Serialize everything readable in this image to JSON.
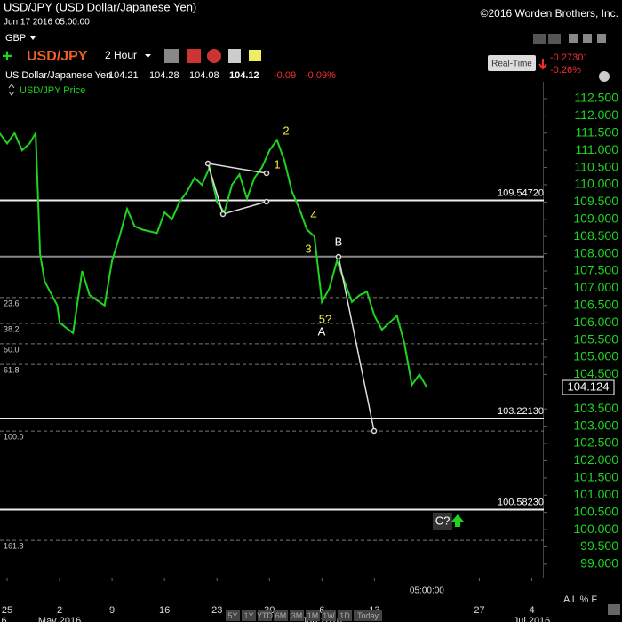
{
  "header": {
    "title": "USD/JPY (USD Dollar/Japanese Yen)",
    "datetime": "Jun 17 2016 05:00:00",
    "copyright": "©2016 Worden Brothers, Inc.",
    "currency": "GBP",
    "symbol": "USD/JPY",
    "interval": "2 Hour",
    "name": "US Dollar/Japanese Yen",
    "ohlc": [
      104.21,
      104.28,
      104.08,
      104.12
    ],
    "change": -0.09,
    "change_pct": "-0.09%",
    "realtime_button": "Real-Time",
    "rt_change": -0.27301,
    "rt_change_pct": "-0.26%"
  },
  "chart_data": {
    "type": "line",
    "series": [
      {
        "name": "USD/JPY Price",
        "color": "#1fd41f",
        "x": [
          -1,
          0,
          1,
          2,
          3,
          3.8,
          4.4,
          5,
          6.7,
          7,
          8.8,
          10,
          11,
          13,
          14,
          15,
          16,
          17,
          18,
          20,
          21,
          22,
          23,
          24,
          25,
          26,
          27,
          28,
          29,
          30,
          31,
          32,
          33,
          34,
          35,
          36,
          37,
          38,
          39,
          40,
          41,
          42,
          43,
          44,
          45,
          46,
          47,
          48,
          49,
          50,
          51,
          52,
          53,
          54,
          55,
          56
        ],
        "values": [
          111.5,
          111.2,
          111.5,
          111.0,
          111.2,
          111.5,
          108.0,
          107.2,
          106.5,
          106.0,
          105.7,
          107.5,
          106.8,
          106.5,
          107.8,
          108.5,
          109.3,
          108.8,
          108.7,
          108.6,
          109.2,
          109.0,
          109.5,
          109.8,
          110.2,
          110.0,
          110.5,
          109.5,
          109.2,
          110.0,
          110.3,
          109.6,
          110.2,
          110.5,
          111.0,
          111.3,
          110.7,
          109.8,
          109.3,
          108.7,
          108.5,
          106.6,
          107.0,
          107.8,
          107.2,
          106.6,
          106.8,
          106.9,
          106.2,
          105.8,
          106.0,
          106.2,
          105.4,
          104.2,
          104.5,
          104.124
        ]
      }
    ],
    "last_price": 104.124,
    "xlim": [
      -0.95,
      71.6
    ],
    "ylim": [
      98.61,
      113.04
    ],
    "xticks": [
      {
        "value": 0,
        "label": "25"
      },
      {
        "value": 7,
        "label": "2"
      },
      {
        "value": 14,
        "label": "9"
      },
      {
        "value": 21,
        "label": "16"
      },
      {
        "value": 28,
        "label": "23"
      },
      {
        "value": 35,
        "label": "30"
      },
      {
        "value": 42,
        "label": "6"
      },
      {
        "value": 49,
        "label": "13"
      },
      {
        "value": 56,
        "label": "05:00:00"
      },
      {
        "value": 63,
        "label": "27"
      },
      {
        "value": 70,
        "label": "4"
      }
    ],
    "month_ticks": [
      {
        "value": -1.5,
        "label": "2016"
      },
      {
        "value": 7,
        "label": "May 2016"
      },
      {
        "value": 42,
        "label": "Jun 2016"
      },
      {
        "value": 70,
        "label": "Jul 2016"
      }
    ],
    "yticks": [
      {
        "value": 99.0,
        "label": "99.000"
      },
      {
        "value": 99.5,
        "label": "99.500"
      },
      {
        "value": 100.0,
        "label": "100.000"
      },
      {
        "value": 100.5,
        "label": "100.500"
      },
      {
        "value": 101.0,
        "label": "101.000"
      },
      {
        "value": 101.5,
        "label": "101.500"
      },
      {
        "value": 102.0,
        "label": "102.000"
      },
      {
        "value": 102.5,
        "label": "102.500"
      },
      {
        "value": 103.0,
        "label": "103.000"
      },
      {
        "value": 103.5,
        "label": "103.500"
      },
      {
        "value": 104.5,
        "label": "104.500"
      },
      {
        "value": 105.0,
        "label": "105.000"
      },
      {
        "value": 105.5,
        "label": "105.500"
      },
      {
        "value": 106.0,
        "label": "106.000"
      },
      {
        "value": 106.5,
        "label": "106.500"
      },
      {
        "value": 107.0,
        "label": "107.000"
      },
      {
        "value": 107.5,
        "label": "107.500"
      },
      {
        "value": 108.0,
        "label": "108.000"
      },
      {
        "value": 108.5,
        "label": "108.500"
      },
      {
        "value": 109.0,
        "label": "109.000"
      },
      {
        "value": 109.5,
        "label": "109.500"
      },
      {
        "value": 110.0,
        "label": "110.000"
      },
      {
        "value": 110.5,
        "label": "110.500"
      },
      {
        "value": 111.0,
        "label": "111.000"
      },
      {
        "value": 111.5,
        "label": "111.500"
      },
      {
        "value": 112.0,
        "label": "112.000"
      },
      {
        "value": 112.5,
        "label": "112.500"
      }
    ],
    "levels": [
      {
        "value": 109.5472,
        "label": "109.54720"
      },
      {
        "value": 103.2213,
        "label": "103.22130"
      },
      {
        "value": 100.5823,
        "label": "100.58230"
      }
    ],
    "gray_level": 107.92,
    "fib_levels": [
      {
        "value": 106.73,
        "label": "23.6"
      },
      {
        "value": 105.98,
        "label": "38.2"
      },
      {
        "value": 105.39,
        "label": "50.0"
      },
      {
        "value": 104.79,
        "label": "61.8"
      },
      {
        "value": 102.86,
        "label": "100.0"
      },
      {
        "value": 99.69,
        "label": "161.8"
      }
    ],
    "annotations": [
      "1",
      "2",
      "3",
      "4",
      "5?",
      "A",
      "B",
      "C?"
    ]
  },
  "footer": {
    "ranges": [
      "5Y",
      "1Y",
      "YTD",
      "6M",
      "3M",
      "1M",
      "1W",
      "1D",
      "Today"
    ],
    "scale_buttons": "A L % F"
  }
}
